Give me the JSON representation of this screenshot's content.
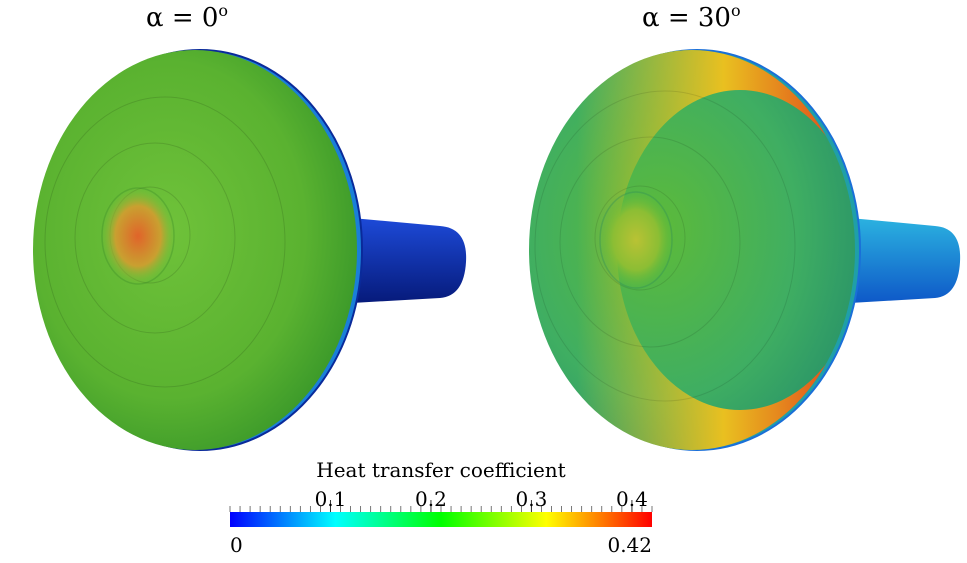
{
  "panels": [
    {
      "title_symbol": "α = 0",
      "title_sup": "o",
      "colors": {
        "disk_base": "#5ab230",
        "disk_center": "#6fc23a",
        "disk_shadow": "#3c9a2a",
        "rim": "#1a7fd8",
        "rim_edge": "#0a2a9a",
        "hotspot_core": "#e0642a",
        "hotspot_mid": "#c9a030",
        "shaft_light": "#1d4ad8",
        "shaft_dark": "#061a7a"
      }
    },
    {
      "title_symbol": "α = 30",
      "title_sup": "o",
      "colors": {
        "disk_base": "#3fae62",
        "disk_center": "#5cba3a",
        "disk_shadow": "#2a9468",
        "rim": "#1f9fa8",
        "rim_edge": "#1a6fd8",
        "hotspot_core": "#b9c234",
        "hotspot_mid": "#8cbe34",
        "hot_band": "#e03a1a",
        "hot_band_outer": "#e9c020",
        "shaft_light": "#2bb2e0",
        "shaft_dark": "#0e58c8"
      }
    }
  ],
  "colorbar": {
    "title": "Heat transfer coefficient",
    "min": 0,
    "max": 0.42,
    "min_label": "0",
    "max_label": "0.42",
    "ticks": [
      {
        "value": 0.1,
        "label": "0.1"
      },
      {
        "value": 0.2,
        "label": "0.2"
      },
      {
        "value": 0.3,
        "label": "0.3"
      },
      {
        "value": 0.4,
        "label": "0.4"
      }
    ],
    "minor_tick_step": 0.01,
    "stops": [
      "#0000ff",
      "#00ffff",
      "#00ff00",
      "#ffff00",
      "#ff0000"
    ]
  }
}
